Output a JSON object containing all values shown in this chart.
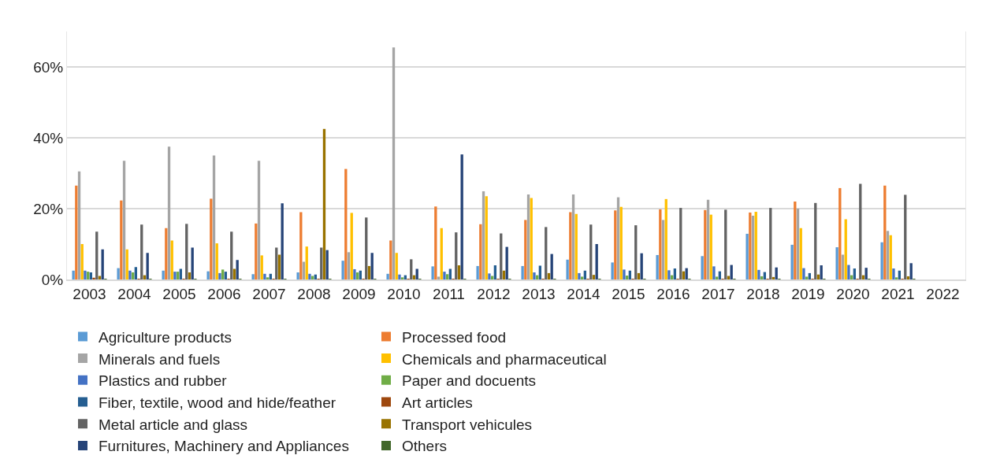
{
  "chart_data": {
    "type": "bar",
    "categories": [
      "2003",
      "2004",
      "2005",
      "2006",
      "2007",
      "2008",
      "2009",
      "2010",
      "2011",
      "2012",
      "2013",
      "2014",
      "2015",
      "2016",
      "2017",
      "2018",
      "2019",
      "2020",
      "2021",
      "2022"
    ],
    "ylim": [
      0,
      70
    ],
    "yticks": [
      {
        "value": 0,
        "label": "0%"
      },
      {
        "value": 20,
        "label": "20%"
      },
      {
        "value": 40,
        "label": "40%"
      },
      {
        "value": 60,
        "label": "60%"
      }
    ],
    "grid": "y",
    "legend": "bottom",
    "series": [
      {
        "name": "Agriculture products",
        "color": "#5b9bd5",
        "values": [
          2.5,
          3.2,
          2.5,
          2.3,
          1.5,
          2,
          5.3,
          1.6,
          3.7,
          3.8,
          3.8,
          5.6,
          4.8,
          6.9,
          6.6,
          12.9,
          9.8,
          9.1,
          10.5,
          null
        ]
      },
      {
        "name": "Processed food",
        "color": "#ed7d31",
        "values": [
          26.5,
          22.3,
          14.5,
          22.8,
          15.8,
          19,
          31.2,
          11,
          20.6,
          15.6,
          16.8,
          19,
          19.5,
          19.8,
          19.6,
          18.9,
          22,
          25.8,
          26.5,
          null
        ]
      },
      {
        "name": "Minerals and fuels",
        "color": "#a5a5a5",
        "values": [
          30.5,
          33.5,
          37.5,
          35,
          33.5,
          5,
          7.7,
          65.5,
          0.8,
          24.9,
          24,
          24,
          23.2,
          16.8,
          22.5,
          18,
          20,
          7,
          13.7,
          null
        ]
      },
      {
        "name": "Chemicals and pharmaceutical",
        "color": "#ffc000",
        "values": [
          10,
          8.5,
          11,
          10.2,
          6.8,
          9.3,
          18.8,
          7.5,
          14.5,
          23.5,
          23,
          18.5,
          20.5,
          22.7,
          18.3,
          19.1,
          14.5,
          17,
          12.5,
          null
        ]
      },
      {
        "name": "Plastics and rubber",
        "color": "#4472c4",
        "values": [
          2.5,
          2.5,
          2.2,
          1.8,
          1.6,
          1.6,
          2.9,
          1.4,
          2.2,
          1.7,
          2,
          1.8,
          2.8,
          2.6,
          3.7,
          2.7,
          3.2,
          4.1,
          3.1,
          null
        ]
      },
      {
        "name": "Paper and docuents",
        "color": "#70ad47",
        "values": [
          2.2,
          2,
          2.2,
          2.8,
          0.6,
          1,
          2,
          0.6,
          1.5,
          1,
          1.2,
          0.8,
          1.1,
          1.2,
          0.8,
          0.9,
          0.8,
          1.2,
          0.6,
          null
        ]
      },
      {
        "name": "Fiber, textile, wood and hide/feather",
        "color": "#255e91",
        "values": [
          2,
          3.5,
          3,
          2.2,
          1.6,
          1.4,
          2.5,
          1.2,
          3,
          4,
          3.9,
          2.5,
          2.5,
          3.1,
          2.3,
          2.1,
          1.8,
          3.1,
          2.5,
          null
        ]
      },
      {
        "name": "Art articles",
        "color": "#9e480e",
        "values": [
          0.5,
          0.2,
          0.1,
          0.1,
          0.1,
          0.1,
          0.1,
          0.1,
          0.1,
          0.1,
          0.1,
          0.1,
          0.1,
          0.1,
          0.1,
          0.1,
          0.1,
          0.1,
          0.1,
          null
        ]
      },
      {
        "name": "Metal article and glass",
        "color": "#636363",
        "values": [
          13.5,
          15.5,
          15.7,
          13.5,
          9,
          9,
          17.5,
          5.7,
          13.3,
          13,
          14.8,
          15.5,
          15.3,
          20.2,
          19.7,
          20.2,
          21.6,
          27,
          23.9,
          null
        ]
      },
      {
        "name": "Transport vehicules",
        "color": "#997300",
        "values": [
          1,
          1.2,
          2,
          3,
          7,
          42.5,
          3.8,
          1.2,
          4,
          2.5,
          1.8,
          1.3,
          1.8,
          2.3,
          1,
          0.7,
          1.4,
          1.2,
          0.9,
          null
        ]
      },
      {
        "name": "Furnitures, Machinery and Appliances",
        "color": "#264478",
        "values": [
          8.5,
          7.5,
          9,
          5.5,
          21.5,
          8.3,
          7.5,
          3,
          35.3,
          9.2,
          7.2,
          10,
          7.4,
          3.2,
          4.1,
          3.4,
          4,
          3.3,
          4.6,
          null
        ]
      },
      {
        "name": "Others",
        "color": "#43682b",
        "values": [
          0.2,
          0.1,
          0.1,
          0.1,
          0.1,
          0.1,
          0.1,
          0.1,
          0.1,
          0.1,
          0.1,
          0.1,
          0.1,
          0.1,
          0.1,
          0.1,
          0.1,
          0.1,
          0.1,
          null
        ]
      }
    ]
  }
}
